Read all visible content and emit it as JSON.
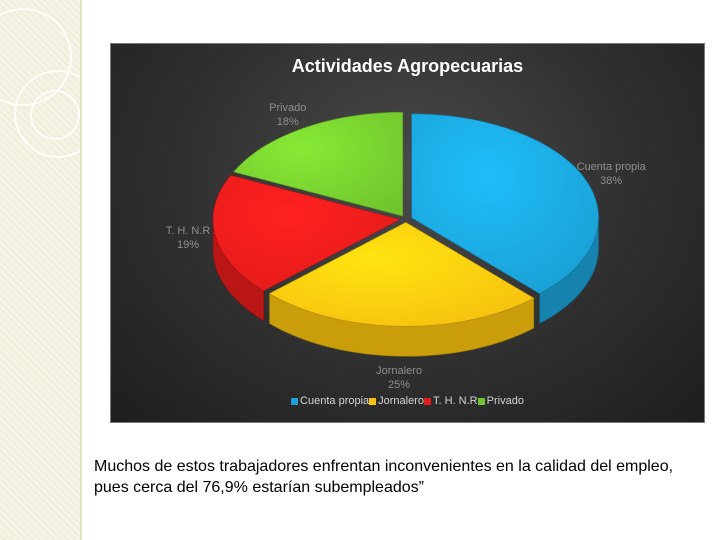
{
  "slide": {
    "caption": "Muchos de estos trabajadores enfrentan inconvenientes en la calidad del empleo, pues cerca del 76,9% estarían subempleados”"
  },
  "chart_data": {
    "type": "pie",
    "style": "3d-exploded",
    "title": "Actividades Agropecuarias",
    "legend": "bottom",
    "slices": [
      {
        "label": "Cuenta propia",
        "value": 38,
        "percent_label": "38%",
        "color": "#1aa0d4"
      },
      {
        "label": "Jornalero",
        "value": 25,
        "percent_label": "25%",
        "color": "#f6c10e"
      },
      {
        "label": "T. H. N.R",
        "value": 19,
        "percent_label": "19%",
        "color": "#e31b1b"
      },
      {
        "label": "Privado",
        "value": 18,
        "percent_label": "18%",
        "color": "#72c62d"
      }
    ]
  }
}
